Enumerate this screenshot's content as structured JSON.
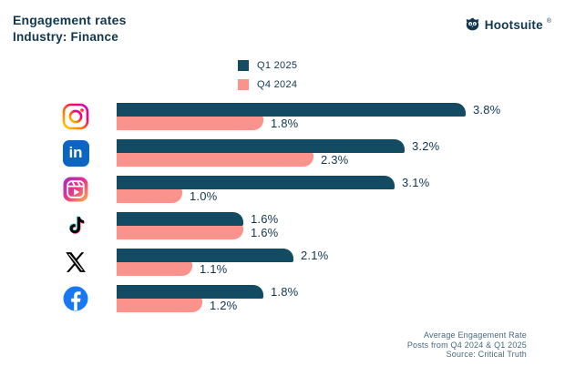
{
  "header": {
    "title": "Engagement rates",
    "subtitle": "Industry: Finance"
  },
  "brand": {
    "name": "Hootsuite",
    "registered": "®",
    "logo_icon": "hootsuite-owl-icon"
  },
  "chart_data": {
    "type": "bar",
    "orientation": "horizontal",
    "title": "Engagement rates",
    "subtitle": "Industry: Finance",
    "categories": [
      "Instagram",
      "LinkedIn",
      "Instagram Reels",
      "TikTok",
      "X (Twitter)",
      "Facebook"
    ],
    "series": [
      {
        "name": "Q1 2025",
        "color": "#134B63",
        "values": [
          3.8,
          3.2,
          3.1,
          1.6,
          2.1,
          1.8
        ]
      },
      {
        "name": "Q4 2024",
        "color": "#FB928B",
        "values": [
          1.8,
          2.3,
          1.0,
          1.6,
          1.1,
          1.2
        ]
      }
    ],
    "value_suffix": "%",
    "xlim": [
      0,
      4
    ],
    "grid": false,
    "legend_position": "top-center",
    "category_axis_style": "platform icons instead of text labels"
  },
  "legend": [
    {
      "label": "Q1 2025",
      "color": "#134B63"
    },
    {
      "label": "Q4 2024",
      "color": "#FB928B"
    }
  ],
  "icons": {
    "linkedin_glyph": "in"
  },
  "footer": {
    "line1": "Average Engagement Rate",
    "line2": "Posts from Q4 2024 & Q1 2025",
    "line3": "Source: Critical Truth"
  },
  "colors": {
    "ink": "#11374F",
    "q1": "#134B63",
    "q4": "#FB928B",
    "background": "#FFFFFF"
  }
}
